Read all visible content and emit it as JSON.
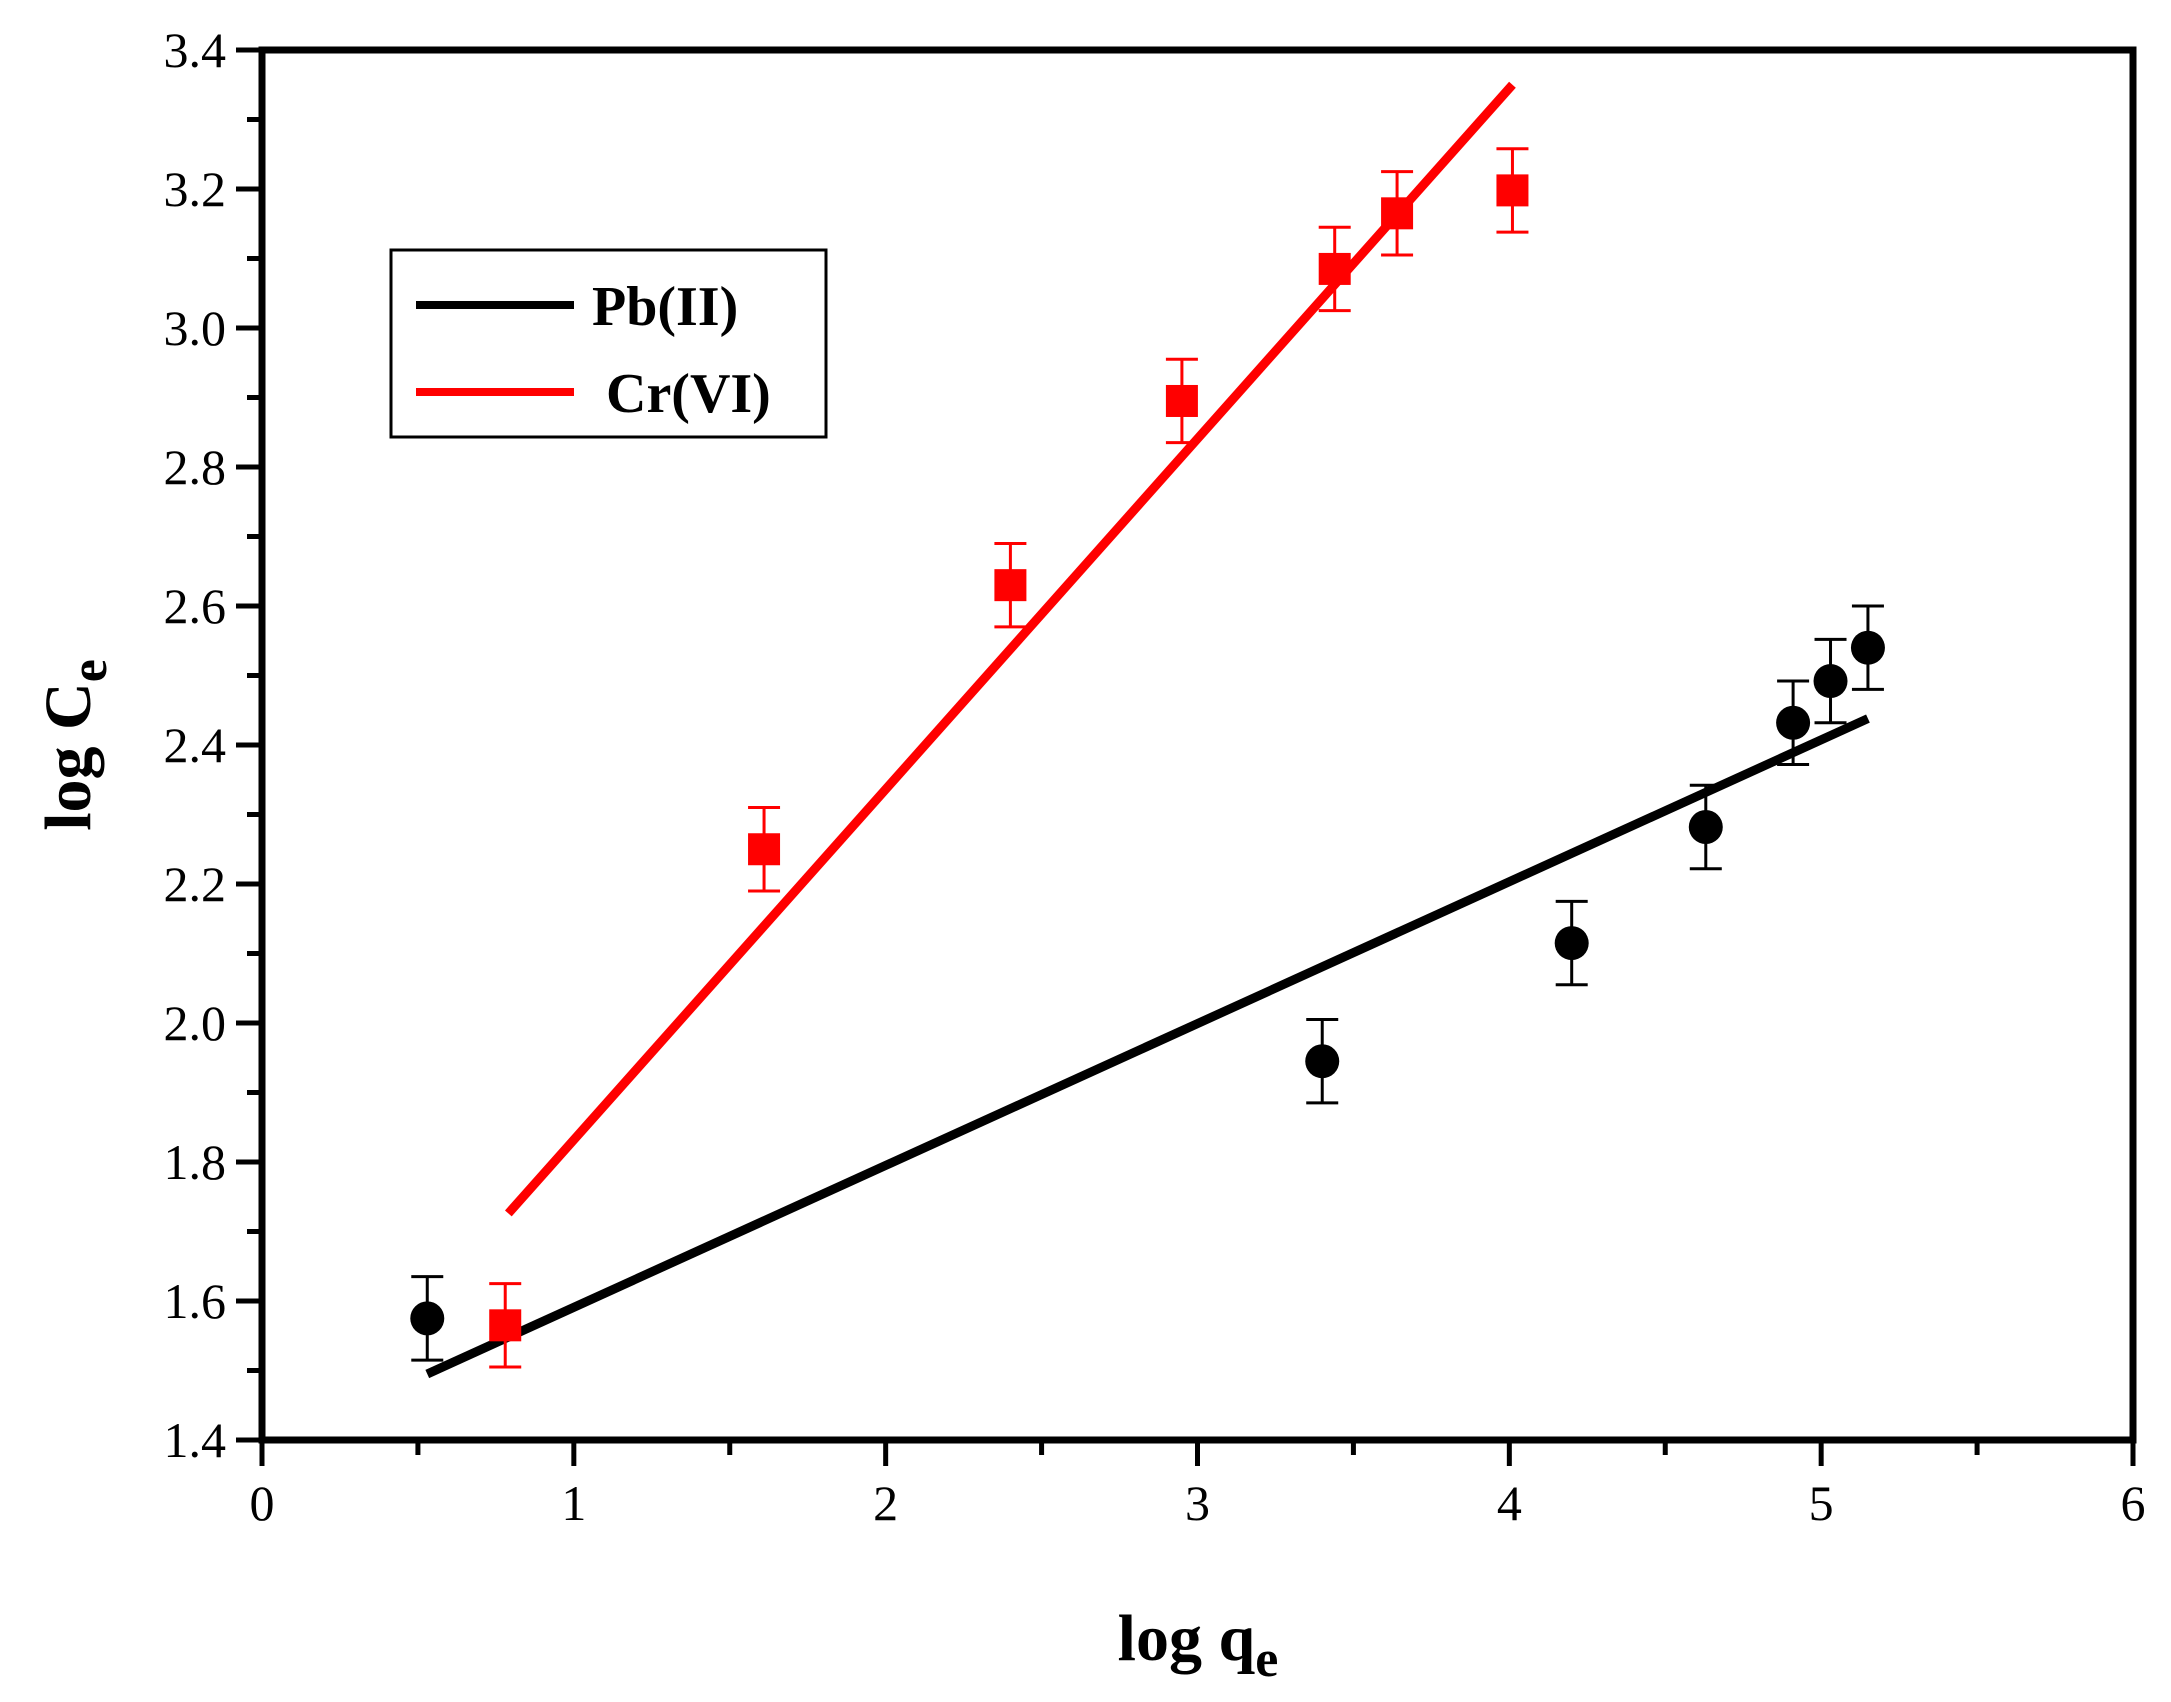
{
  "chart_data": {
    "type": "scatter",
    "title": "",
    "xlabel": {
      "main": "log q",
      "sub": "e"
    },
    "ylabel": {
      "main": "log C",
      "sub": "e"
    },
    "xlim": [
      0,
      6
    ],
    "ylim": [
      1.4,
      3.4
    ],
    "xticks": [
      0,
      1,
      2,
      3,
      4,
      5,
      6
    ],
    "xtick_labels": [
      "0",
      "1",
      "2",
      "3",
      "4",
      "5",
      "6"
    ],
    "yticks": [
      1.4,
      1.6,
      1.8,
      2.0,
      2.2,
      2.4,
      2.6,
      2.8,
      3.0,
      3.2,
      3.4
    ],
    "ytick_labels": [
      "1.4",
      "1.6",
      "1.8",
      "2.0",
      "2.2",
      "2.4",
      "2.6",
      "2.8",
      "3.0",
      "3.2",
      "3.4"
    ],
    "grid": false,
    "legend_position": "upper-left",
    "series": [
      {
        "name": "Pb(II)",
        "color": "#000000",
        "marker": "circle",
        "x": [
          0.53,
          3.4,
          4.2,
          4.63,
          4.91,
          5.03,
          5.15
        ],
        "y": [
          1.575,
          1.945,
          2.115,
          2.282,
          2.432,
          2.492,
          2.54
        ],
        "yerr": 0.06,
        "fit": {
          "x": [
            0.53,
            5.15
          ],
          "y": [
            1.495,
            2.438
          ]
        }
      },
      {
        "name": "Cr(VI)",
        "color": "#ff0000",
        "marker": "square",
        "x": [
          0.78,
          1.61,
          2.4,
          2.95,
          3.44,
          3.64,
          4.01
        ],
        "y": [
          1.565,
          2.25,
          2.63,
          2.895,
          3.085,
          3.165,
          3.198
        ],
        "yerr": 0.06,
        "fit": {
          "x": [
            0.79,
            4.01
          ],
          "y": [
            1.726,
            3.35
          ]
        }
      }
    ]
  }
}
